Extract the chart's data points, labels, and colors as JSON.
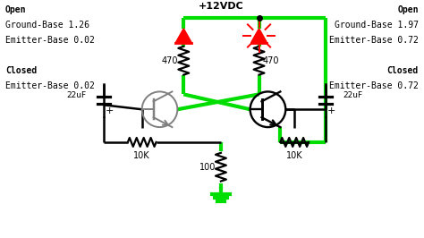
{
  "background_color": "#ffffff",
  "wire_color": "#00dd00",
  "wire_lw": 3.0,
  "black_lw": 1.8,
  "red_color": "#ff0000",
  "left_text": [
    "Open",
    "Ground-Base 1.26",
    "Emitter-Base 0.02",
    "",
    "Closed",
    "Emitter-Base 0.02"
  ],
  "right_text": [
    "Open",
    "Ground-Base 1.97",
    "Emitter-Base 0.72",
    "",
    "Closed",
    "Emitter-Base 0.72"
  ],
  "vdc_label": "+12VDC",
  "r1_label": "470",
  "r2_label": "470",
  "r3_label": "10K",
  "r4_label": "10K",
  "r5_label": "100",
  "c1_label": "22uF",
  "c2_label": "22uF"
}
